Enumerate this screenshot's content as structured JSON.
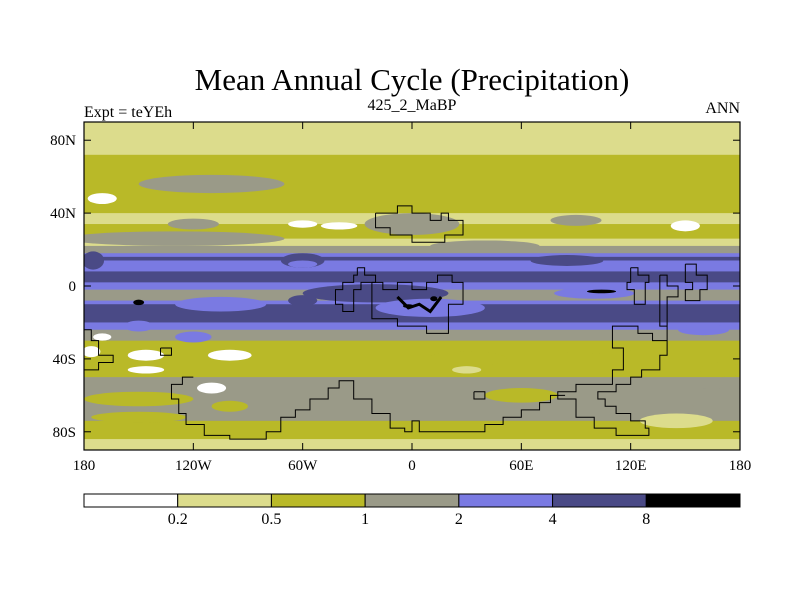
{
  "chart_data": {
    "type": "heatmap",
    "title": "Mean Annual Cycle (Precipitation)",
    "subtitle_left": "Expt = teYEh",
    "subtitle_center": "425_2_MaBP",
    "subtitle_right": "ANN",
    "x_ticks": [
      {
        "value": -180,
        "label": "180"
      },
      {
        "value": -120,
        "label": "120W"
      },
      {
        "value": -60,
        "label": "60W"
      },
      {
        "value": 0,
        "label": "0"
      },
      {
        "value": 60,
        "label": "60E"
      },
      {
        "value": 120,
        "label": "120E"
      },
      {
        "value": 180,
        "label": "180"
      }
    ],
    "y_ticks": [
      {
        "value": 80,
        "label": "80N"
      },
      {
        "value": 40,
        "label": "40N"
      },
      {
        "value": 0,
        "label": "0"
      },
      {
        "value": -40,
        "label": "40S"
      },
      {
        "value": -80,
        "label": "80S"
      }
    ],
    "xlim": [
      -180,
      180
    ],
    "ylim": [
      -90,
      90
    ],
    "contour_levels": [
      "0.2",
      "0.5",
      "1",
      "2",
      "4",
      "8"
    ],
    "colors": [
      "#ffffff",
      "#dcdc8c",
      "#b9b928",
      "#9a9a88",
      "#7a7ae2",
      "#4a4a86",
      "#000000"
    ],
    "zonal_profile": [
      {
        "lat": 90,
        "level": 1
      },
      {
        "lat": 84,
        "level": 1
      },
      {
        "lat": 80,
        "level": 1
      },
      {
        "lat": 72,
        "level": 2
      },
      {
        "lat": 60,
        "level": 2
      },
      {
        "lat": 52,
        "level": 2
      },
      {
        "lat": 48,
        "level": 2
      },
      {
        "lat": 40,
        "level": 1
      },
      {
        "lat": 34,
        "level": 2
      },
      {
        "lat": 30,
        "level": 2
      },
      {
        "lat": 26,
        "level": 1
      },
      {
        "lat": 22,
        "level": 3
      },
      {
        "lat": 18,
        "level": 4
      },
      {
        "lat": 16,
        "level": 5
      },
      {
        "lat": 14,
        "level": 4
      },
      {
        "lat": 8,
        "level": 5
      },
      {
        "lat": 2,
        "level": 4
      },
      {
        "lat": -2,
        "level": 3
      },
      {
        "lat": -8,
        "level": 4
      },
      {
        "lat": -10,
        "level": 5
      },
      {
        "lat": -16,
        "level": 5
      },
      {
        "lat": -20,
        "level": 4
      },
      {
        "lat": -24,
        "level": 3
      },
      {
        "lat": -30,
        "level": 2
      },
      {
        "lat": -38,
        "level": 2
      },
      {
        "lat": -46,
        "level": 2
      },
      {
        "lat": -50,
        "level": 3
      },
      {
        "lat": -56,
        "level": 3
      },
      {
        "lat": -66,
        "level": 3
      },
      {
        "lat": -74,
        "level": 2
      },
      {
        "lat": -80,
        "level": 2
      },
      {
        "lat": -84,
        "level": 1
      },
      {
        "lat": -90,
        "level": 1
      }
    ],
    "continent_outlines": [
      [
        [
          -20,
          40
        ],
        [
          -8,
          40
        ],
        [
          -8,
          44
        ],
        [
          0,
          44
        ],
        [
          0,
          40
        ],
        [
          10,
          40
        ],
        [
          10,
          36
        ],
        [
          16,
          36
        ],
        [
          16,
          40
        ],
        [
          20,
          40
        ],
        [
          20,
          36
        ],
        [
          28,
          36
        ],
        [
          28,
          28
        ],
        [
          18,
          28
        ],
        [
          18,
          24
        ],
        [
          0,
          24
        ],
        [
          0,
          28
        ],
        [
          -12,
          28
        ],
        [
          -12,
          32
        ],
        [
          -20,
          32
        ],
        [
          -20,
          40
        ]
      ],
      [
        [
          -30,
          10
        ],
        [
          -26,
          10
        ],
        [
          -26,
          6
        ],
        [
          -20,
          6
        ],
        [
          -20,
          2
        ],
        [
          -28,
          2
        ],
        [
          -28,
          -2
        ],
        [
          -32,
          -2
        ],
        [
          -32,
          -14
        ],
        [
          -38,
          -14
        ],
        [
          -38,
          -10
        ],
        [
          -42,
          -10
        ],
        [
          -42,
          -2
        ],
        [
          -38,
          -2
        ],
        [
          -38,
          2
        ],
        [
          -32,
          2
        ],
        [
          -32,
          6
        ],
        [
          -30,
          6
        ],
        [
          -30,
          10
        ]
      ],
      [
        [
          -22,
          2
        ],
        [
          -16,
          2
        ],
        [
          -16,
          -2
        ],
        [
          -8,
          -2
        ],
        [
          -8,
          2
        ],
        [
          0,
          2
        ],
        [
          0,
          -2
        ],
        [
          8,
          -2
        ],
        [
          8,
          2
        ],
        [
          14,
          2
        ],
        [
          14,
          6
        ],
        [
          22,
          6
        ],
        [
          22,
          2
        ],
        [
          28,
          2
        ],
        [
          28,
          -10
        ],
        [
          20,
          -10
        ],
        [
          20,
          -26
        ],
        [
          8,
          -26
        ],
        [
          8,
          -22
        ],
        [
          -8,
          -22
        ],
        [
          -8,
          -18
        ],
        [
          -22,
          -18
        ],
        [
          -22,
          2
        ]
      ],
      [
        [
          120,
          10
        ],
        [
          124,
          10
        ],
        [
          124,
          6
        ],
        [
          130,
          6
        ],
        [
          130,
          2
        ],
        [
          128,
          2
        ],
        [
          128,
          -10
        ],
        [
          122,
          -10
        ],
        [
          122,
          -2
        ],
        [
          118,
          -2
        ],
        [
          118,
          2
        ],
        [
          120,
          2
        ],
        [
          120,
          10
        ]
      ],
      [
        [
          136,
          6
        ],
        [
          140,
          6
        ],
        [
          140,
          0
        ],
        [
          146,
          0
        ],
        [
          146,
          -6
        ],
        [
          140,
          -6
        ],
        [
          140,
          -30
        ],
        [
          132,
          -30
        ],
        [
          132,
          -26
        ],
        [
          124,
          -26
        ],
        [
          124,
          -22
        ],
        [
          110,
          -22
        ],
        [
          110,
          -34
        ],
        [
          116,
          -34
        ],
        [
          116,
          -46
        ],
        [
          110,
          -46
        ],
        [
          110,
          -54
        ],
        [
          90,
          -54
        ],
        [
          90,
          -58
        ],
        [
          80,
          -58
        ],
        [
          80,
          -62
        ],
        [
          90,
          -62
        ],
        [
          90,
          -72
        ],
        [
          100,
          -72
        ],
        [
          100,
          -78
        ],
        [
          112,
          -78
        ],
        [
          112,
          -82
        ],
        [
          130,
          -82
        ],
        [
          130,
          -78
        ],
        [
          128,
          -78
        ],
        [
          128,
          -74
        ],
        [
          120,
          -74
        ],
        [
          120,
          -70
        ],
        [
          112,
          -70
        ],
        [
          112,
          -66
        ],
        [
          106,
          -66
        ],
        [
          106,
          -62
        ],
        [
          102,
          -62
        ],
        [
          102,
          -58
        ],
        [
          112,
          -58
        ],
        [
          112,
          -54
        ],
        [
          120,
          -54
        ],
        [
          120,
          -50
        ],
        [
          126,
          -50
        ],
        [
          126,
          -46
        ],
        [
          136,
          -46
        ],
        [
          136,
          -38
        ],
        [
          140,
          -38
        ],
        [
          140,
          -22
        ],
        [
          136,
          -22
        ],
        [
          136,
          6
        ]
      ],
      [
        [
          150,
          12
        ],
        [
          156,
          12
        ],
        [
          156,
          6
        ],
        [
          162,
          6
        ],
        [
          162,
          -2
        ],
        [
          158,
          -2
        ],
        [
          158,
          -8
        ],
        [
          150,
          -8
        ],
        [
          150,
          -2
        ],
        [
          154,
          -2
        ],
        [
          154,
          2
        ],
        [
          150,
          2
        ],
        [
          150,
          12
        ]
      ],
      [
        [
          -180,
          -24
        ],
        [
          -176,
          -24
        ],
        [
          -176,
          -30
        ],
        [
          -172,
          -30
        ],
        [
          -172,
          -38
        ],
        [
          -164,
          -38
        ],
        [
          -164,
          -42
        ],
        [
          -172,
          -42
        ],
        [
          -172,
          -46
        ],
        [
          -180,
          -46
        ]
      ],
      [
        [
          -120,
          -50
        ],
        [
          -126,
          -50
        ],
        [
          -126,
          -54
        ],
        [
          -132,
          -54
        ],
        [
          -132,
          -62
        ],
        [
          -128,
          -62
        ],
        [
          -128,
          -70
        ],
        [
          -124,
          -70
        ],
        [
          -124,
          -76
        ],
        [
          -114,
          -76
        ],
        [
          -114,
          -82
        ],
        [
          -100,
          -82
        ],
        [
          -100,
          -84
        ],
        [
          -80,
          -84
        ],
        [
          -80,
          -80
        ],
        [
          -72,
          -80
        ],
        [
          -72,
          -72
        ],
        [
          -64,
          -72
        ],
        [
          -64,
          -68
        ],
        [
          -56,
          -68
        ],
        [
          -56,
          -62
        ],
        [
          -46,
          -62
        ],
        [
          -46,
          -56
        ],
        [
          -40,
          -56
        ],
        [
          -40,
          -52
        ],
        [
          -32,
          -52
        ],
        [
          -32,
          -62
        ],
        [
          -22,
          -62
        ],
        [
          -22,
          -70
        ],
        [
          -12,
          -70
        ],
        [
          -12,
          -78
        ],
        [
          -4,
          -78
        ],
        [
          -4,
          -80
        ],
        [
          0,
          -80
        ],
        [
          0,
          -74
        ],
        [
          4,
          -74
        ],
        [
          4,
          -80
        ],
        [
          40,
          -80
        ],
        [
          40,
          -76
        ],
        [
          50,
          -76
        ],
        [
          50,
          -72
        ],
        [
          60,
          -72
        ],
        [
          60,
          -68
        ],
        [
          70,
          -68
        ],
        [
          70,
          -64
        ],
        [
          76,
          -64
        ],
        [
          76,
          -60
        ],
        [
          84,
          -60
        ]
      ],
      [
        [
          34,
          -58
        ],
        [
          40,
          -58
        ],
        [
          40,
          -62
        ],
        [
          34,
          -62
        ],
        [
          34,
          -58
        ]
      ],
      [
        [
          -138,
          -34
        ],
        [
          -132,
          -34
        ],
        [
          -132,
          -38
        ],
        [
          -138,
          -38
        ],
        [
          -138,
          -34
        ]
      ]
    ]
  }
}
